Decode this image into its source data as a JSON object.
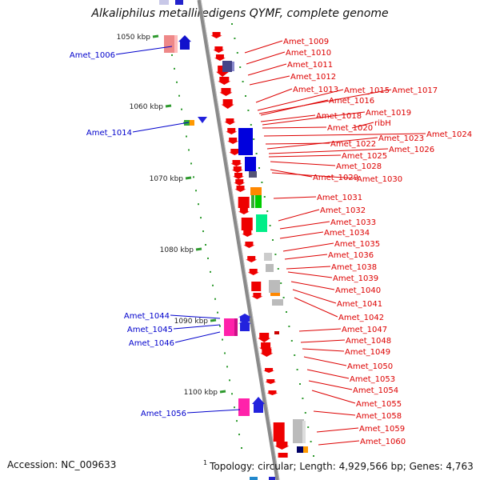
{
  "title": "Alkaliphilus metalliredigens QYMF, complete genome",
  "footer": {
    "accession": "Accession: NC_009633",
    "superscript": "1",
    "stats": "Topology: circular; Length: 4,929,566 bp; Genes: 4,763"
  },
  "colors": {
    "left_label": "#0000cc",
    "right_label": "#dd0000",
    "backbone": "#8a8a8a",
    "tick": "#2e9a2e"
  },
  "scale": [
    {
      "label": "1050 kbp"
    },
    {
      "label": "1060 kbp"
    },
    {
      "label": "1070 kbp"
    },
    {
      "label": "1080 kbp"
    },
    {
      "label": "1090 kbp"
    },
    {
      "label": "1100 kbp"
    }
  ],
  "left_genes": [
    {
      "label": "Amet_1006"
    },
    {
      "label": "Amet_1014"
    },
    {
      "label": "Amet_1044"
    },
    {
      "label": "Amet_1045"
    },
    {
      "label": "Amet_1046"
    },
    {
      "label": "Amet_1056"
    }
  ],
  "right_genes": [
    {
      "label": "Amet_1009"
    },
    {
      "label": "Amet_1010"
    },
    {
      "label": "Amet_1011"
    },
    {
      "label": "Amet_1012"
    },
    {
      "label": "Amet_1013"
    },
    {
      "label": "Amet_1015"
    },
    {
      "label": "Amet_1017"
    },
    {
      "label": "Amet_1016"
    },
    {
      "label": "Amet_1018"
    },
    {
      "label": "Amet_1019"
    },
    {
      "label": "Amet_1020"
    },
    {
      "label": "ribH"
    },
    {
      "label": "Amet_1024"
    },
    {
      "label": "Amet_1022"
    },
    {
      "label": "Amet_1023"
    },
    {
      "label": "Amet_1026"
    },
    {
      "label": "Amet_1025"
    },
    {
      "label": "Amet_1028"
    },
    {
      "label": "Amet_1029"
    },
    {
      "label": "Amet_1030"
    },
    {
      "label": "Amet_1031"
    },
    {
      "label": "Amet_1032"
    },
    {
      "label": "Amet_1033"
    },
    {
      "label": "Amet_1034"
    },
    {
      "label": "Amet_1035"
    },
    {
      "label": "Amet_1036"
    },
    {
      "label": "Amet_1038"
    },
    {
      "label": "Amet_1039"
    },
    {
      "label": "Amet_1040"
    },
    {
      "label": "Amet_1041"
    },
    {
      "label": "Amet_1042"
    },
    {
      "label": "Amet_1047"
    },
    {
      "label": "Amet_1048"
    },
    {
      "label": "Amet_1049"
    },
    {
      "label": "Amet_1050"
    },
    {
      "label": "Amet_1053"
    },
    {
      "label": "Amet_1054"
    },
    {
      "label": "Amet_1055"
    },
    {
      "label": "Amet_1058"
    },
    {
      "label": "Amet_1059"
    },
    {
      "label": "Amet_1060"
    }
  ]
}
